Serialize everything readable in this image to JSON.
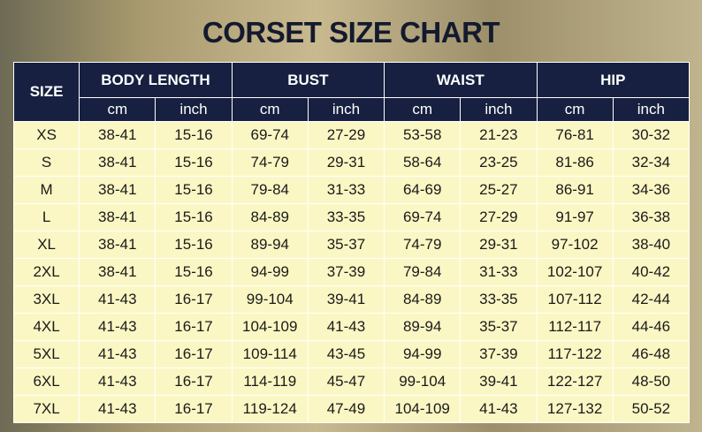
{
  "header": {
    "title": "CORSET SIZE CHART"
  },
  "table": {
    "size_label": "SIZE",
    "groups": [
      "BODY LENGTH",
      "BUST",
      "WAIST",
      "HIP"
    ],
    "units": [
      "cm",
      "inch",
      "cm",
      "inch",
      "cm",
      "inch",
      "cm",
      "inch"
    ],
    "rows": [
      [
        "XS",
        "38-41",
        "15-16",
        "69-74",
        "27-29",
        "53-58",
        "21-23",
        "76-81",
        "30-32"
      ],
      [
        "S",
        "38-41",
        "15-16",
        "74-79",
        "29-31",
        "58-64",
        "23-25",
        "81-86",
        "32-34"
      ],
      [
        "M",
        "38-41",
        "15-16",
        "79-84",
        "31-33",
        "64-69",
        "25-27",
        "86-91",
        "34-36"
      ],
      [
        "L",
        "38-41",
        "15-16",
        "84-89",
        "33-35",
        "69-74",
        "27-29",
        "91-97",
        "36-38"
      ],
      [
        "XL",
        "38-41",
        "15-16",
        "89-94",
        "35-37",
        "74-79",
        "29-31",
        "97-102",
        "38-40"
      ],
      [
        "2XL",
        "38-41",
        "15-16",
        "94-99",
        "37-39",
        "79-84",
        "31-33",
        "102-107",
        "40-42"
      ],
      [
        "3XL",
        "41-43",
        "16-17",
        "99-104",
        "39-41",
        "84-89",
        "33-35",
        "107-112",
        "42-44"
      ],
      [
        "4XL",
        "41-43",
        "16-17",
        "104-109",
        "41-43",
        "89-94",
        "35-37",
        "112-117",
        "44-46"
      ],
      [
        "5XL",
        "41-43",
        "16-17",
        "109-114",
        "43-45",
        "94-99",
        "37-39",
        "117-122",
        "46-48"
      ],
      [
        "6XL",
        "41-43",
        "16-17",
        "114-119",
        "45-47",
        "99-104",
        "39-41",
        "122-127",
        "48-50"
      ],
      [
        "7XL",
        "41-43",
        "16-17",
        "119-124",
        "47-49",
        "104-109",
        "41-43",
        "127-132",
        "50-52"
      ]
    ]
  }
}
